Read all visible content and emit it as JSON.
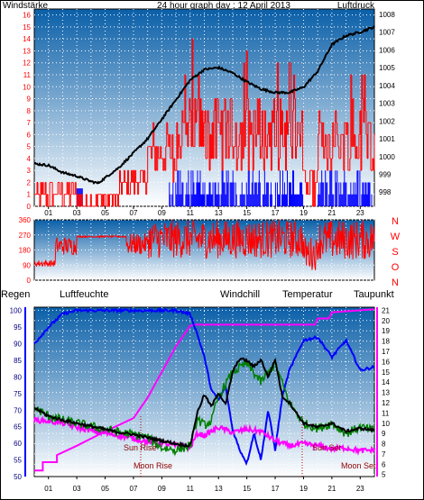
{
  "header": {
    "left": "Windstärke",
    "title": "24 hour graph day : 12 April 2013",
    "right": "Luftdruck"
  },
  "labels": {
    "regen": "Regen",
    "luftfeuchte": "Luftfeuchte",
    "windchill": "Windchill",
    "temperatur": "Temperatur",
    "taupunkt": "Taupunkt",
    "sun_rise": "Sun Rise",
    "moon_rise": "Moon Rise",
    "sun_set": "Sun Set",
    "moon_set": "Moon Set"
  },
  "colors": {
    "wind": "#ff0000",
    "gust_blue": "#0000ff",
    "pressure": "#000000",
    "regen": "#ff00ff",
    "luftfeuchte": "#0000ff",
    "windchill": "#008000",
    "temperatur": "#000000",
    "taupunkt": "#ff00ff",
    "label_red": "#ff0000",
    "label_navy": "#000080",
    "sky_top": "#0a5fa8",
    "sky_bottom": "#ffffff"
  },
  "chart_data": [
    {
      "type": "line",
      "name": "wind_pressure",
      "x_ticks": [
        "01",
        "03",
        "05",
        "07",
        "09",
        "11",
        "13",
        "15",
        "17",
        "19",
        "21",
        "23"
      ],
      "y_left_ticks": [
        "0",
        "1",
        "2",
        "3",
        "4",
        "5",
        "6",
        "7",
        "8",
        "9",
        "10",
        "11",
        "12",
        "13",
        "14",
        "15",
        "16"
      ],
      "y_left_range": [
        0,
        16.5
      ],
      "y_right_ticks": [
        "998",
        "999",
        "1000",
        "1001",
        "1002",
        "1003",
        "1004",
        "1005",
        "1006",
        "1007",
        "1008"
      ],
      "y_right_range": [
        997.2,
        1008.3
      ],
      "pressure": {
        "hours": [
          0,
          1,
          2,
          3,
          4,
          4.5,
          5,
          6,
          7,
          8,
          9,
          10,
          11,
          12,
          13,
          14,
          15,
          16,
          17,
          18,
          19,
          20,
          21,
          22,
          23,
          24
        ],
        "values": [
          999.6,
          999.5,
          999.1,
          998.9,
          998.6,
          998.5,
          998.8,
          999.4,
          1000.2,
          1001.0,
          1002.1,
          1003.2,
          1004.3,
          1004.9,
          1005.0,
          1004.7,
          1004.2,
          1003.8,
          1003.6,
          1003.6,
          1003.9,
          1004.8,
          1006.3,
          1006.8,
          1007.0,
          1007.3
        ]
      }
    },
    {
      "type": "scatter",
      "name": "wind_direction",
      "x_ticks": [
        "01",
        "03",
        "05",
        "07",
        "09",
        "11",
        "13",
        "15",
        "17",
        "19",
        "21",
        "23"
      ],
      "y_ticks": [
        "0",
        "90",
        "180",
        "270",
        "360"
      ],
      "y_range": [
        0,
        360
      ],
      "compass": [
        "N",
        "W",
        "S",
        "O",
        "N"
      ]
    },
    {
      "type": "line",
      "name": "temperature_humidity",
      "x_ticks": [
        "01",
        "03",
        "05",
        "07",
        "09",
        "11",
        "13",
        "15",
        "17",
        "19",
        "21",
        "23"
      ],
      "y_left_ticks": [
        "50",
        "55",
        "60",
        "65",
        "70",
        "75",
        "80",
        "85",
        "90",
        "95",
        "100"
      ],
      "y_left_range": [
        50,
        101
      ],
      "y_right_ticks": [
        "5",
        "6",
        "7",
        "8",
        "9",
        "10",
        "11",
        "12",
        "13",
        "14",
        "15",
        "16",
        "17",
        "18",
        "19",
        "20",
        "21"
      ],
      "y_right_range": [
        4.8,
        21.3
      ],
      "temperatur": {
        "hours": [
          0,
          1,
          2,
          3,
          4,
          5,
          6,
          7,
          8,
          9,
          10,
          11,
          11.5,
          12,
          12.5,
          13,
          13.5,
          14,
          14.5,
          15,
          15.5,
          16,
          16.5,
          17,
          17.5,
          18,
          19,
          20,
          21,
          22,
          23,
          24
        ],
        "values": [
          11.5,
          10.7,
          10.3,
          10.0,
          9.7,
          9.4,
          9.1,
          8.9,
          8.6,
          8.3,
          8.0,
          7.8,
          11.0,
          12.8,
          11.6,
          13.0,
          11.8,
          15.0,
          16.3,
          16.1,
          15.5,
          16.2,
          14.5,
          16.2,
          12.6,
          12.0,
          10.0,
          9.6,
          10.0,
          9.2,
          9.5,
          9.3
        ]
      },
      "windchill": {
        "hours": [
          0,
          1,
          2,
          3,
          4,
          5,
          6,
          7,
          8,
          9,
          10,
          11,
          11.5,
          12,
          12.5,
          13,
          14,
          15,
          16,
          17,
          18,
          19,
          20,
          21,
          22,
          23,
          24
        ],
        "values": [
          11.5,
          10.7,
          10.3,
          10.0,
          9.7,
          9.4,
          9.1,
          8.9,
          8.6,
          7.6,
          7.4,
          7.8,
          10.4,
          9.8,
          10.2,
          12.6,
          15.0,
          15.8,
          14.0,
          15.8,
          12.0,
          10.0,
          9.5,
          10.0,
          9.0,
          9.6,
          9.3
        ]
      },
      "taupunkt": {
        "hours": [
          0,
          1,
          2,
          3,
          4,
          5,
          6,
          7,
          8,
          9,
          10,
          11,
          11.5,
          12,
          13,
          14,
          15,
          16,
          17,
          18,
          19,
          20,
          21,
          22,
          23,
          24
        ],
        "values": [
          10.3,
          10.2,
          10.0,
          9.6,
          9.3,
          9.0,
          8.8,
          8.5,
          8.2,
          8.0,
          7.8,
          7.6,
          9.0,
          8.8,
          9.6,
          9.1,
          9.4,
          9.2,
          8.3,
          7.8,
          8.0,
          7.8,
          7.5,
          7.6,
          7.3,
          7.4
        ]
      },
      "luftfeuchte": {
        "hours": [
          0,
          1,
          2,
          3,
          4,
          5,
          6,
          7,
          8,
          9,
          10,
          11,
          11.5,
          12,
          12.5,
          13,
          13.5,
          14,
          14.5,
          15,
          15.5,
          16,
          16.5,
          17,
          17.5,
          18,
          19,
          20,
          21,
          22,
          23,
          24
        ],
        "values": [
          90,
          95,
          99,
          100,
          100,
          100,
          100,
          100,
          100,
          100,
          100,
          99,
          93,
          86,
          76,
          73,
          77,
          64,
          58,
          54,
          63,
          55,
          70,
          58,
          74,
          82,
          91,
          92,
          86,
          91,
          82,
          83
        ]
      },
      "regen": {
        "hours": [
          0,
          0.6,
          0.6,
          1.6,
          1.6,
          3,
          5,
          7,
          8,
          9,
          10,
          11,
          11.3,
          15,
          19.8,
          20,
          20.8,
          21,
          24
        ],
        "values": [
          5.4,
          5.4,
          6.2,
          6.2,
          6.9,
          7.8,
          9.2,
          10.5,
          12.5,
          15.0,
          17.5,
          19.5,
          19.6,
          19.6,
          19.6,
          20.2,
          20.2,
          20.8,
          21.1
        ]
      }
    }
  ]
}
